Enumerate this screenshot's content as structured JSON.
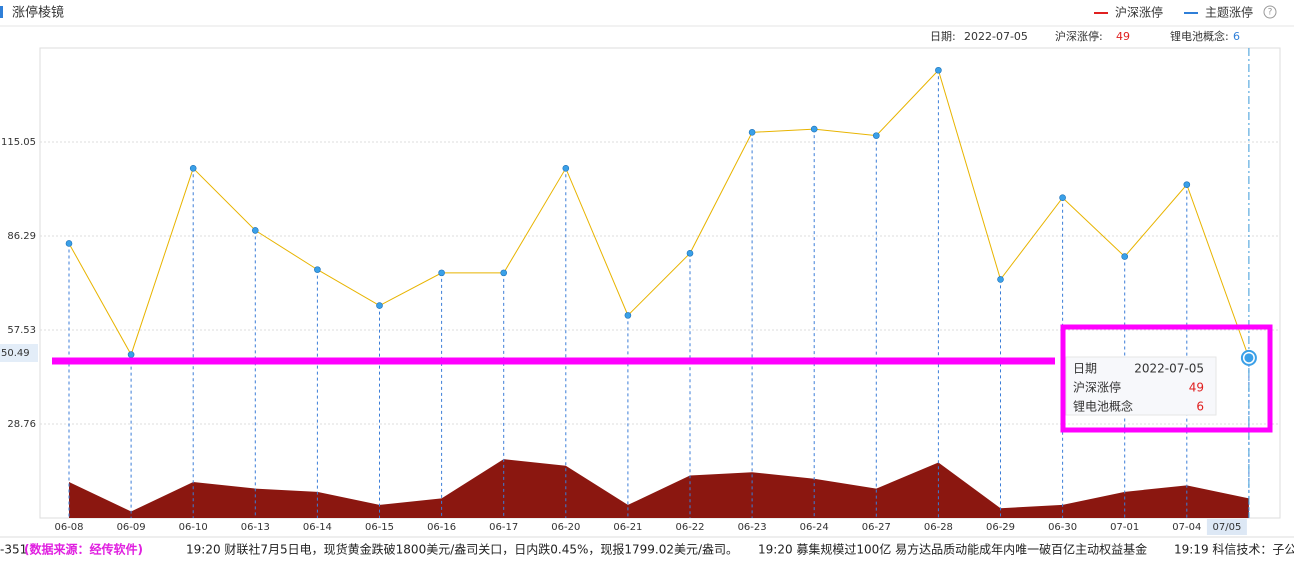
{
  "header": {
    "title": "涨停棱镜",
    "help": "?"
  },
  "info": {
    "date_label": "日期:",
    "date": "2022-07-05",
    "main_label": "沪深涨停:",
    "main_value": 49,
    "theme_label": "锂电池概念:",
    "theme_value": 6
  },
  "chart_data": {
    "type": "line-area",
    "categories": [
      "06-08",
      "06-09",
      "06-10",
      "06-13",
      "06-14",
      "06-15",
      "06-16",
      "06-17",
      "06-20",
      "06-21",
      "06-22",
      "06-23",
      "06-24",
      "06-27",
      "06-28",
      "06-29",
      "06-30",
      "07-01",
      "07-04",
      "07-05"
    ],
    "series": [
      {
        "name": "沪深涨停",
        "legend_color": "#e02020",
        "color": "#e8b400",
        "values": [
          84,
          50,
          107,
          88,
          76,
          65,
          75,
          75,
          107,
          62,
          81,
          118,
          119,
          117,
          137,
          73,
          98,
          80,
          102,
          49
        ]
      },
      {
        "name": "主题涨停",
        "legend_color": "#2f7fd8",
        "color": "#8b1710",
        "values": [
          11,
          2,
          11,
          9,
          8,
          4,
          6,
          18,
          16,
          4,
          13,
          14,
          12,
          9,
          17,
          3,
          4,
          8,
          10,
          6
        ]
      }
    ],
    "ylim": [
      0,
      143.81
    ],
    "yticks": [
      115.05,
      86.29,
      57.53,
      28.76
    ],
    "grid": true,
    "crosshair": {
      "y": 50.49,
      "x_label": "07/05",
      "index": 19
    }
  },
  "tooltip": {
    "rows": [
      [
        "日期",
        "2022-07-05"
      ],
      [
        "沪深涨停",
        49
      ],
      [
        "锂电池概念",
        6
      ]
    ]
  },
  "ticker": [
    "-351",
    "(数据来源：经传软件)",
    "19:20 财联社7月5日电，现货黄金跌破1800美元/盎司关口，日内跌0.45%，现报1799.02美元/盎司。",
    "19:20 募集规模过100亿 易方达品质动能成年内唯一破百亿主动权益基金",
    "19:19 科信技术：子公"
  ]
}
